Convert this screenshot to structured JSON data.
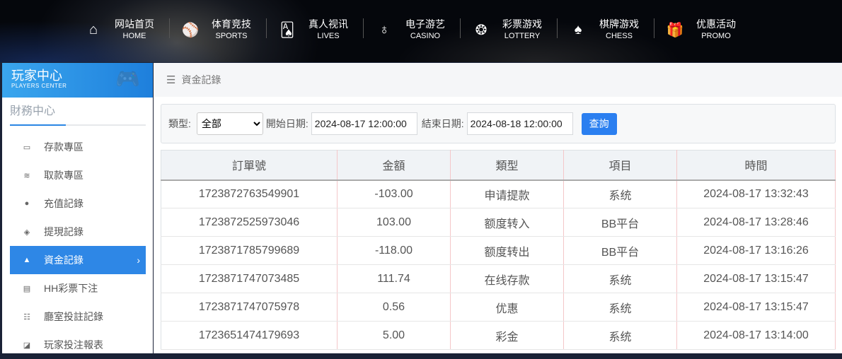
{
  "topnav": [
    {
      "cn": "网站首页",
      "en": "HOME",
      "icon": "home-icon",
      "glyph": "⌂"
    },
    {
      "cn": "体育竞技",
      "en": "SPORTS",
      "icon": "ball-icon",
      "glyph": "⚾"
    },
    {
      "cn": "真人视讯",
      "en": "LIVES",
      "icon": "cards-icon",
      "glyph": "🂡"
    },
    {
      "cn": "电子游艺",
      "en": "CASINO",
      "icon": "roulette-icon",
      "glyph": "♁"
    },
    {
      "cn": "彩票游戏",
      "en": "LOTTERY",
      "icon": "lottery-balls-icon",
      "glyph": "❂"
    },
    {
      "cn": "棋牌游戏",
      "en": "CHESS",
      "icon": "spade-icon",
      "glyph": "♠"
    },
    {
      "cn": "优惠活动",
      "en": "PROMO",
      "icon": "gift-icon",
      "glyph": "🎁"
    }
  ],
  "sidebar": {
    "title": "玩家中心",
    "subtitle": "PLAYERS CENTER",
    "section": "財務中心",
    "items": [
      {
        "label": "存款專區",
        "icon": "card-icon",
        "glyph": "▭"
      },
      {
        "label": "取款專區",
        "icon": "hand-money-icon",
        "glyph": "≋"
      },
      {
        "label": "充值記錄",
        "icon": "money-bag-icon",
        "glyph": "●"
      },
      {
        "label": "提現記錄",
        "icon": "wallet-icon",
        "glyph": "◈"
      },
      {
        "label": "資金記錄",
        "icon": "funds-icon",
        "glyph": "▲",
        "active": true
      },
      {
        "label": "HH彩票下注",
        "icon": "list-icon",
        "glyph": "▤"
      },
      {
        "label": "廳室投註記錄",
        "icon": "list-bullets-icon",
        "glyph": "☷"
      },
      {
        "label": "玩家投注報表",
        "icon": "chart-icon",
        "glyph": "◪"
      }
    ]
  },
  "breadcrumb": "資金記錄",
  "filter": {
    "type_label": "類型:",
    "type_value": "全部",
    "start_label": "開始日期:",
    "start_value": "2024-08-17 12:00:00",
    "end_label": "結束日期:",
    "end_value": "2024-08-18 12:00:00",
    "query": "查詢"
  },
  "table": {
    "headers": [
      "訂單號",
      "金額",
      "類型",
      "項目",
      "時間"
    ],
    "rows": [
      [
        "1723872763549901",
        "-103.00",
        "申请提款",
        "系统",
        "2024-08-17 13:32:43"
      ],
      [
        "1723872525973046",
        "103.00",
        "额度转入",
        "BB平台",
        "2024-08-17 13:28:46"
      ],
      [
        "1723871785799689",
        "-118.00",
        "额度转出",
        "BB平台",
        "2024-08-17 13:16:26"
      ],
      [
        "1723871747073485",
        "111.74",
        "在线存款",
        "系统",
        "2024-08-17 13:15:47"
      ],
      [
        "1723871747075978",
        "0.56",
        "优惠",
        "系统",
        "2024-08-17 13:15:47"
      ],
      [
        "1723651474179693",
        "5.00",
        "彩金",
        "系统",
        "2024-08-17 13:14:00"
      ]
    ]
  }
}
